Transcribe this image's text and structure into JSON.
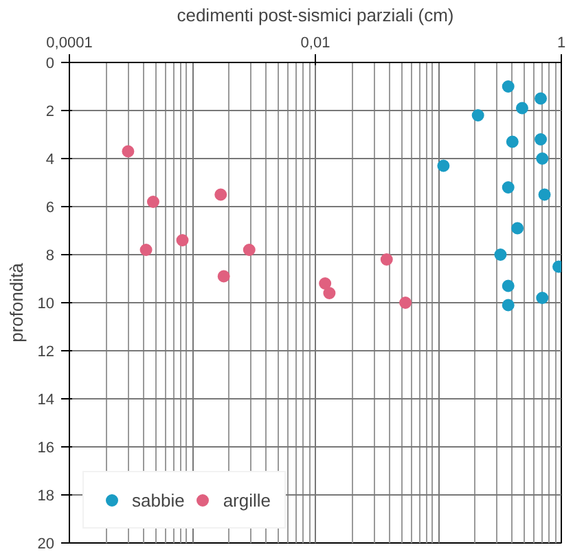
{
  "chart_data": {
    "type": "scatter",
    "xlabel": "cedimenti post-sismici parziali (cm)",
    "ylabel": "profondità",
    "log": "x",
    "xlim": [
      0.0001,
      1
    ],
    "xticks": [
      {
        "value": 0.0001,
        "label": "0,0001"
      },
      {
        "value": 0.01,
        "label": "0,01"
      },
      {
        "value": 1,
        "label": "1"
      }
    ],
    "ylim": [
      20,
      0
    ],
    "yticks": [
      0,
      2,
      4,
      6,
      8,
      10,
      12,
      14,
      16,
      18,
      20
    ],
    "grid": true,
    "legend": "bottom left",
    "marker": "circle",
    "series": [
      {
        "name": "sabbie",
        "color": "#1a9cc4",
        "x": [
          0.21,
          0.37,
          0.48,
          0.68,
          0.4,
          0.68,
          0.11,
          0.7,
          0.37,
          0.73,
          0.44,
          0.32,
          0.95,
          0.37,
          0.37,
          0.7
        ],
        "values": [
          2.2,
          1.0,
          1.9,
          1.5,
          3.3,
          3.2,
          4.3,
          4.0,
          5.2,
          5.5,
          6.9,
          8.0,
          8.5,
          9.3,
          10.1,
          9.8
        ]
      },
      {
        "name": "argille",
        "color": "#e0607f",
        "x": [
          0.0003,
          0.00048,
          0.0017,
          0.00042,
          0.00083,
          0.0029,
          0.0018,
          0.012,
          0.013,
          0.038,
          0.054
        ],
        "values": [
          3.7,
          5.8,
          5.5,
          7.8,
          7.4,
          7.8,
          8.9,
          9.2,
          9.6,
          8.2,
          10.0
        ]
      }
    ]
  }
}
